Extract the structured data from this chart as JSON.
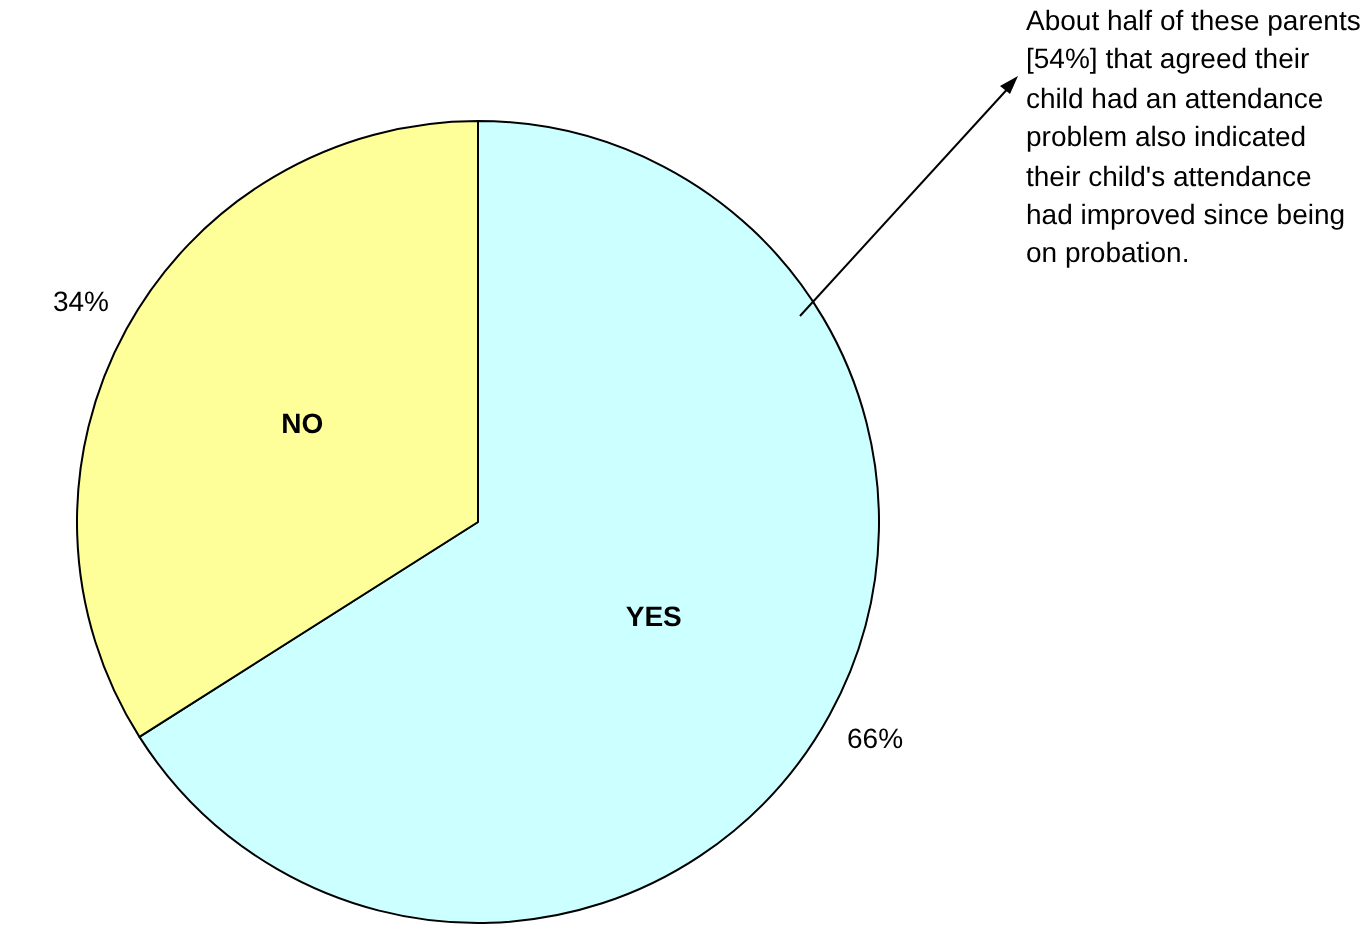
{
  "chart_data": {
    "type": "pie",
    "categories": [
      "YES",
      "NO"
    ],
    "values": [
      66,
      34
    ],
    "colors": [
      "#ccffff",
      "#ffff99"
    ],
    "value_labels": [
      "66%",
      "34%"
    ],
    "legend": false,
    "annotations": [
      "About half  of these parents [54%] that agreed their child had an attendance problem also indicated their child's attendance had improved since being on probation."
    ]
  }
}
